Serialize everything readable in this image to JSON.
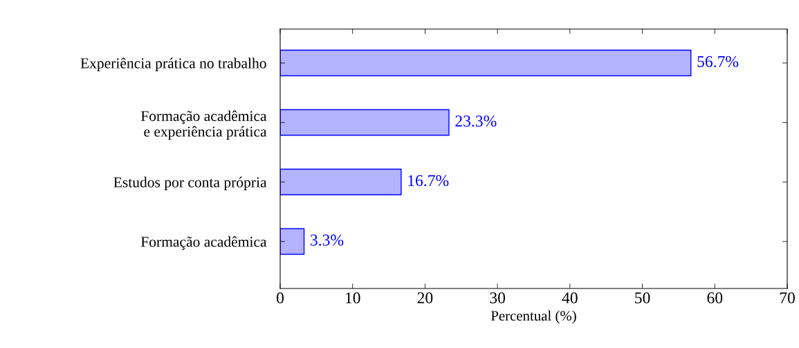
{
  "chart_data": {
    "type": "bar",
    "orientation": "horizontal",
    "xlabel": "Percentual (%)",
    "categories": [
      "Experiência prática no trabalho",
      "Formação acadêmica\ne experiência prática",
      "Estudos por conta própria",
      "Formação acadêmica"
    ],
    "values": [
      56.7,
      23.3,
      16.7,
      3.3
    ],
    "value_labels": [
      "56.7%",
      "23.3%",
      "16.7%",
      "3.3%"
    ],
    "color": "#b3b3ff",
    "xlim": [
      0,
      70
    ],
    "xticks": [
      0,
      10,
      20,
      30,
      40,
      50,
      60,
      70
    ],
    "grid": false,
    "legend": false
  }
}
